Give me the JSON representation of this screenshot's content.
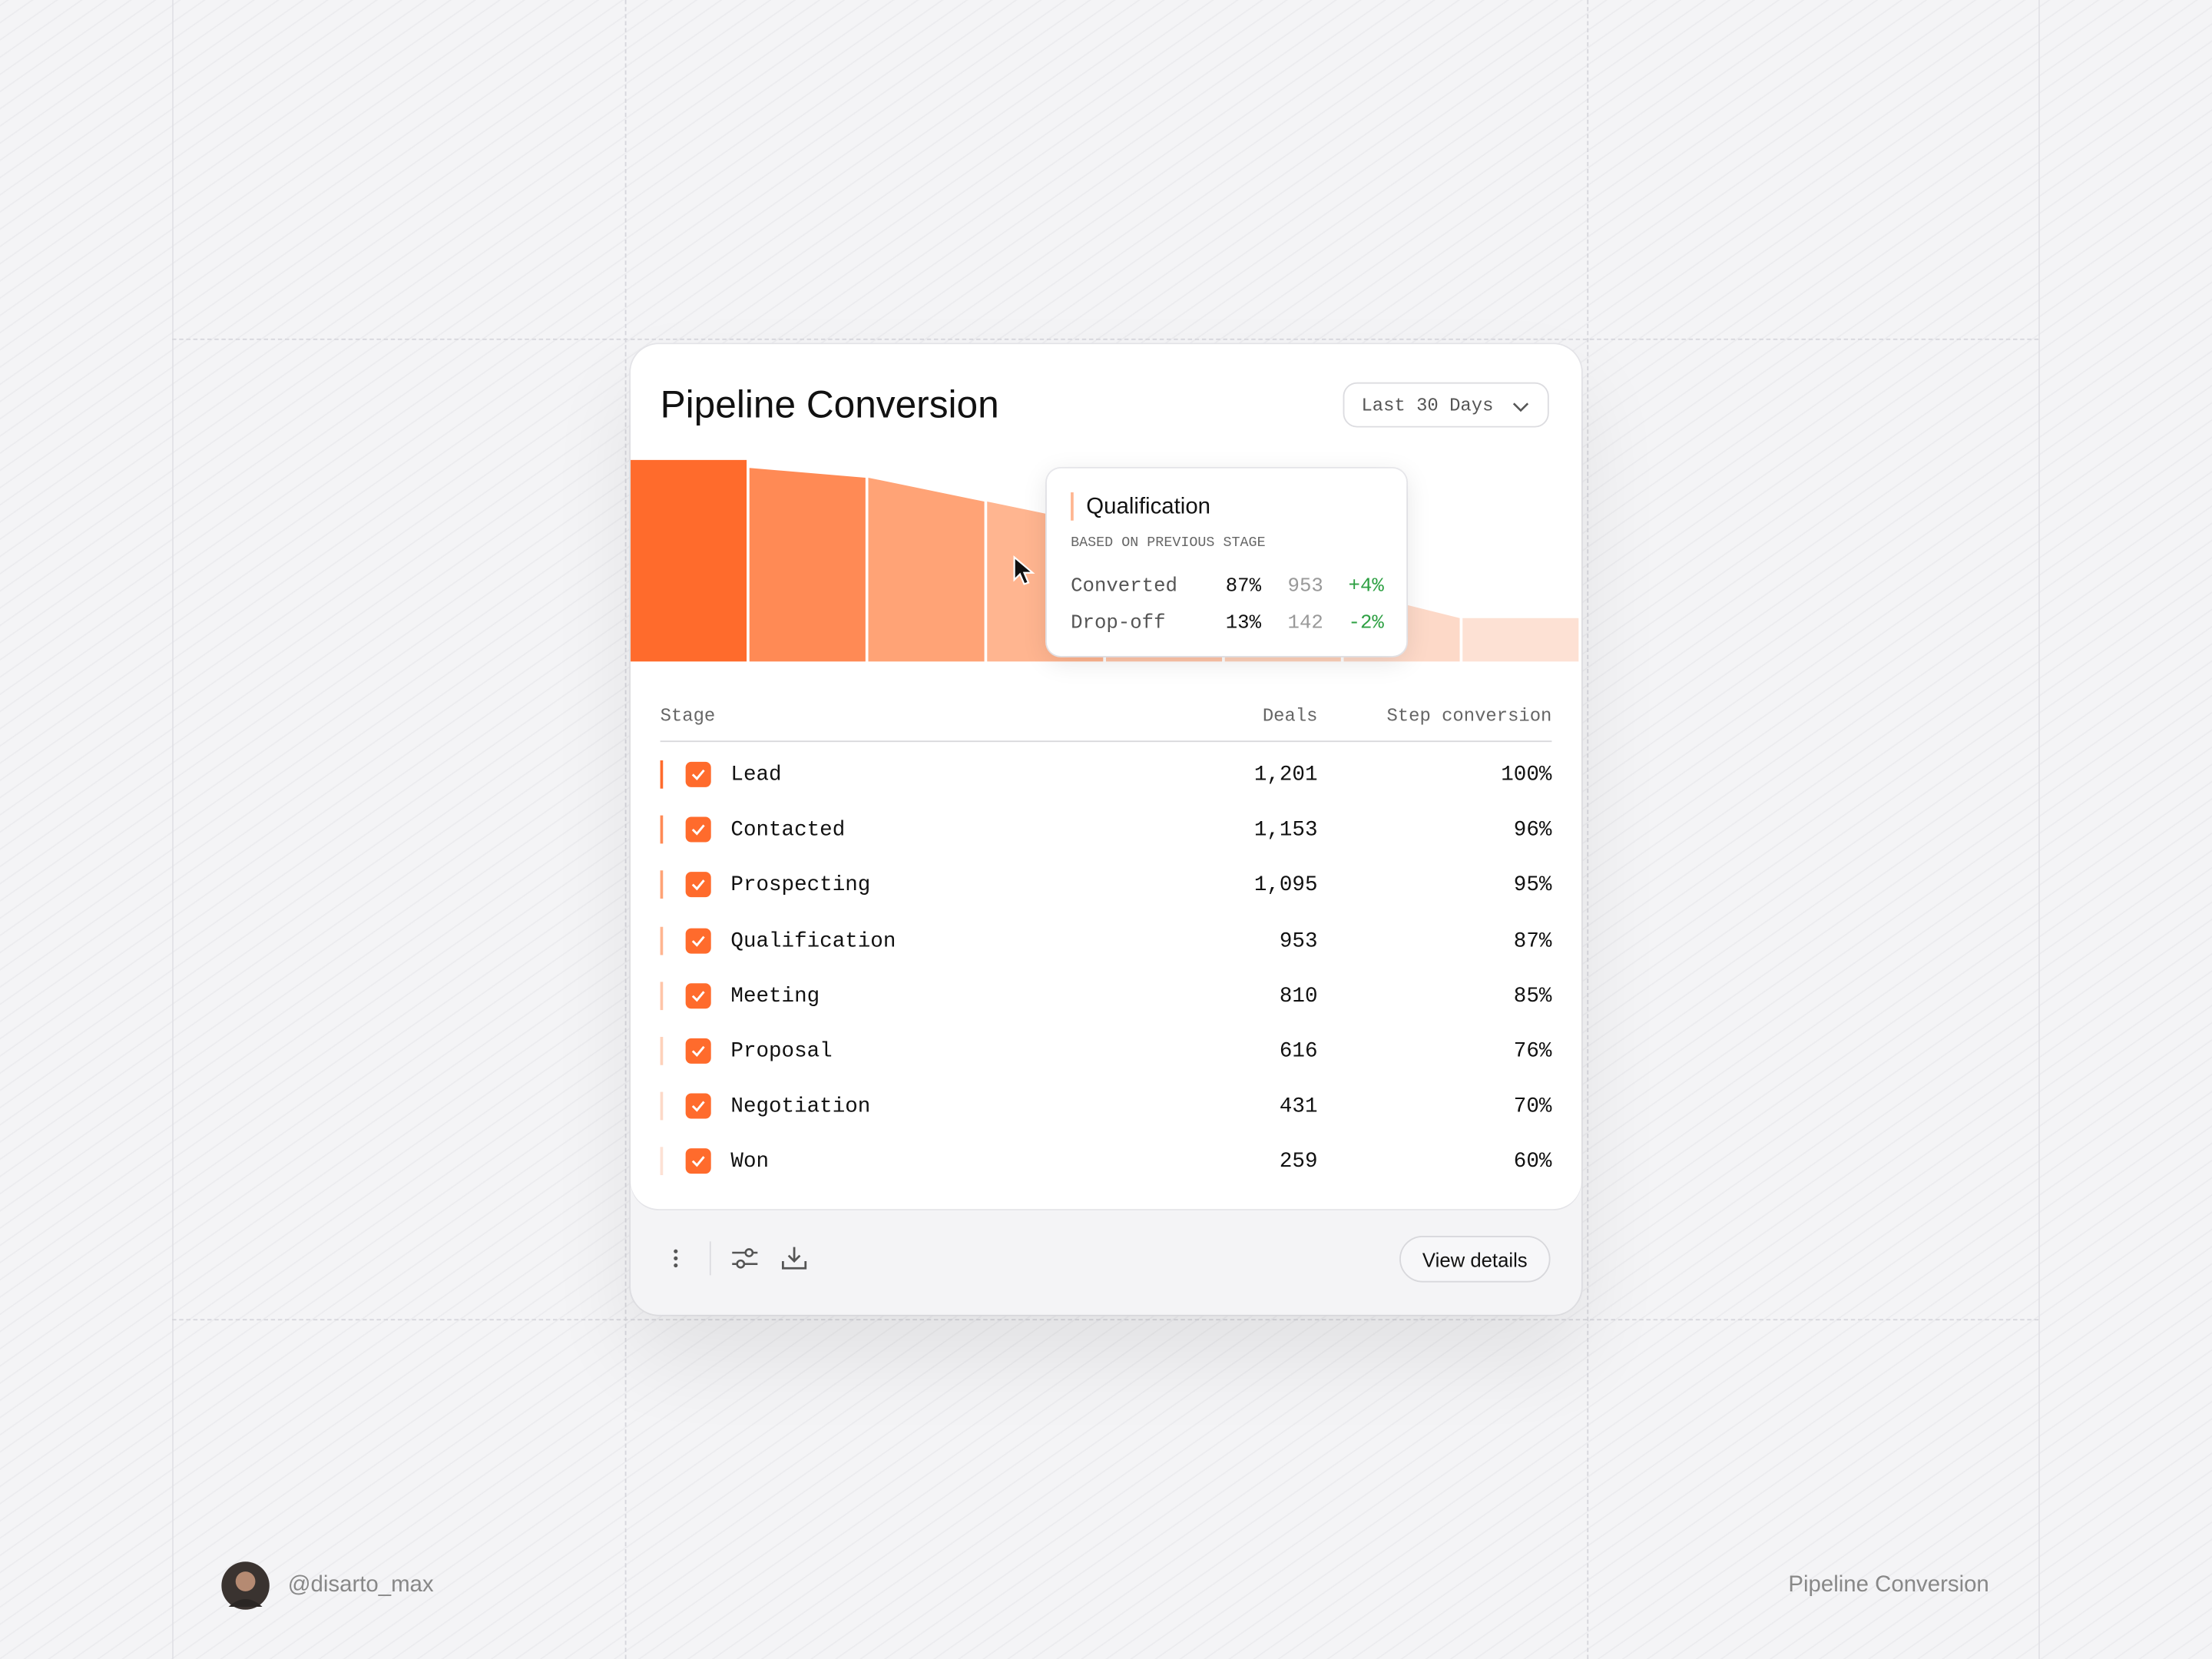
{
  "header": {
    "title": "Pipeline Conversion",
    "range": "Last 30 Days"
  },
  "funnel": {
    "colors": [
      "#ff6b2c",
      "#ff8a55",
      "#ffa376",
      "#ffb590",
      "#ffc5a8",
      "#fed1ba",
      "#fdd9c8",
      "#fde1d4"
    ]
  },
  "tooltip": {
    "title": "Qualification",
    "subtitle": "BASED ON PREVIOUS STAGE",
    "rows": [
      [
        "Converted",
        "87%",
        "953",
        "+4%"
      ],
      [
        "Drop-off",
        "13%",
        "142",
        "-2%"
      ]
    ]
  },
  "table": {
    "columns": [
      "Stage",
      "Deals",
      "Step conversion"
    ],
    "rows": [
      {
        "stage": "Lead",
        "deals": {
          "value": 1201,
          "label": "1,201"
        },
        "conversion": "100%"
      },
      {
        "stage": "Contacted",
        "deals": {
          "value": 1153,
          "label": "1,153"
        },
        "conversion": "96%"
      },
      {
        "stage": "Prospecting",
        "deals": {
          "value": 1095,
          "label": "1,095"
        },
        "conversion": "95%"
      },
      {
        "stage": "Qualification",
        "deals": 953,
        "conversion": "87%"
      },
      {
        "stage": "Meeting",
        "deals": 810,
        "conversion": "85%"
      },
      {
        "stage": "Proposal",
        "deals": 616,
        "conversion": "76%"
      },
      {
        "stage": "Negotiation",
        "deals": 431,
        "conversion": "70%"
      },
      {
        "stage": "Won",
        "deals": 259,
        "conversion": "60%"
      }
    ]
  },
  "footer": {
    "button": "View details",
    "handle": "@disarto_max",
    "caption": "Pipeline Conversion"
  }
}
